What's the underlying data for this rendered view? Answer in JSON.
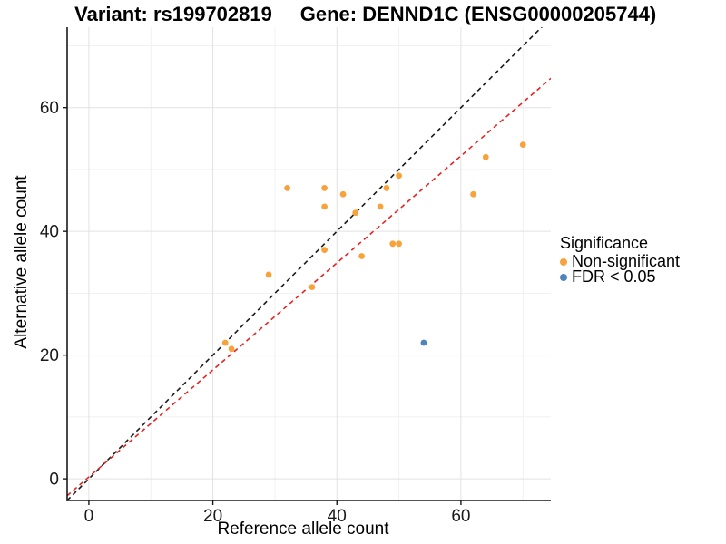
{
  "titles": {
    "variant": "Variant: rs199702819",
    "gene": "Gene: DENND1C (ENSG00000205744)"
  },
  "chart_data": {
    "type": "scatter",
    "xlabel": "Reference allele count",
    "ylabel": "Alternative allele count",
    "xlim": [
      -3.5,
      74.5
    ],
    "ylim": [
      -3.5,
      73.0
    ],
    "x_ticks": [
      0,
      20,
      40,
      60
    ],
    "y_ticks": [
      0,
      20,
      40,
      60
    ],
    "x_minor": [
      10,
      30,
      50,
      70
    ],
    "y_minor": [
      10,
      30,
      50,
      70
    ],
    "grid": true,
    "colors": {
      "major_grid": "#e2e2e2",
      "minor_grid": "#f1f1f1",
      "axis": "#1a1a1a",
      "identity_line": "#1a1a1a",
      "fit_line": "#e62222"
    },
    "series": [
      {
        "name": "Non-significant",
        "color": "#f8a23c",
        "points": [
          [
            22,
            22
          ],
          [
            23,
            21
          ],
          [
            29,
            33
          ],
          [
            32,
            47
          ],
          [
            36,
            31
          ],
          [
            38,
            37
          ],
          [
            38,
            44
          ],
          [
            38,
            47
          ],
          [
            41,
            46
          ],
          [
            43,
            43
          ],
          [
            44,
            36
          ],
          [
            47,
            44
          ],
          [
            48,
            47
          ],
          [
            49,
            38
          ],
          [
            50,
            38
          ],
          [
            50,
            49
          ],
          [
            62,
            46
          ],
          [
            64,
            52
          ],
          [
            70,
            54
          ]
        ]
      },
      {
        "name": "FDR < 0.05",
        "color": "#4e83bb",
        "points": [
          [
            54,
            22
          ]
        ]
      }
    ],
    "lines": [
      {
        "name": "identity",
        "slope": 1.0,
        "intercept": 0.0,
        "color": "#1a1a1a",
        "dash": "5,4"
      },
      {
        "name": "fit",
        "slope": 0.865,
        "intercept": 0.3,
        "color": "#e62222",
        "dash": "5,4"
      }
    ],
    "legend": {
      "title": "Significance",
      "position": "right",
      "items": [
        {
          "label": "Non-significant",
          "color": "#f8a23c"
        },
        {
          "label": "FDR < 0.05",
          "color": "#4e83bb"
        }
      ]
    }
  }
}
